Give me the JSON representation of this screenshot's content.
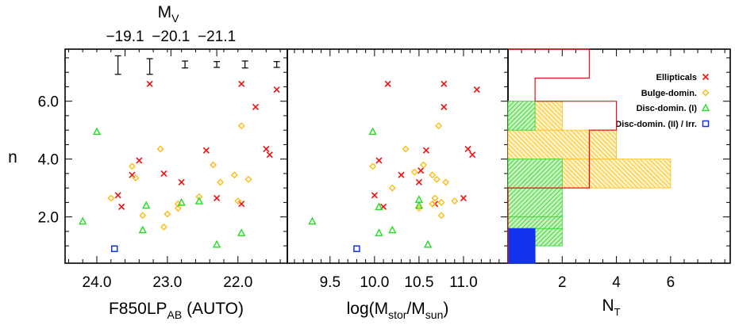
{
  "colors": {
    "ellipticals": "#ee1111",
    "bulge": "#ffbb11",
    "disc1": "#22dd22",
    "disc2": "#1133ee",
    "errorbar": "#000000"
  },
  "chart_data": {
    "type": "scatter",
    "yaxis": {
      "label": "n",
      "ticks": [
        "2.0",
        "4.0",
        "6.0"
      ],
      "tick_values": [
        2.0,
        4.0,
        6.0
      ],
      "ylim": [
        0.4,
        7.8
      ]
    },
    "panels": [
      {
        "name": "magnitude",
        "xlabel_main": "F850LP",
        "xlabel_sub": "AB",
        "xlabel_tail": " (AUTO)",
        "xlim": [
          24.45,
          21.3
        ],
        "xticks": [
          "24.0",
          "23.0",
          "22.0"
        ],
        "xtick_values": [
          24.0,
          23.0,
          22.0
        ],
        "top_axis": {
          "label_main": "M",
          "label_sub": "V",
          "ticks": [
            "−19.1",
            "−20.1",
            "−21.1"
          ],
          "tick_values": [
            23.6,
            22.95,
            22.3
          ]
        },
        "errorbars": [
          {
            "x": 23.7,
            "y": 7.25,
            "err": 0.32
          },
          {
            "x": 23.25,
            "y": 7.2,
            "err": 0.27
          },
          {
            "x": 22.75,
            "y": 7.27,
            "err": 0.12
          },
          {
            "x": 22.3,
            "y": 7.27,
            "err": 0.1
          },
          {
            "x": 21.9,
            "y": 7.27,
            "err": 0.12
          },
          {
            "x": 21.45,
            "y": 7.27,
            "err": 0.1
          }
        ],
        "series": [
          {
            "name": "Ellipticals",
            "marker": "x",
            "points": [
              [
                23.25,
                6.6
              ],
              [
                21.95,
                6.6
              ],
              [
                21.45,
                6.4
              ],
              [
                21.75,
                5.8
              ],
              [
                21.6,
                4.35
              ],
              [
                21.55,
                4.15
              ],
              [
                22.45,
                4.3
              ],
              [
                23.4,
                3.95
              ],
              [
                23.5,
                3.45
              ],
              [
                23.05,
                3.5
              ],
              [
                22.8,
                3.2
              ],
              [
                23.7,
                2.75
              ],
              [
                23.65,
                2.35
              ],
              [
                22.3,
                2.65
              ],
              [
                21.95,
                2.45
              ]
            ]
          },
          {
            "name": "Bulge-domin.",
            "marker": "diamond",
            "points": [
              [
                21.95,
                5.15
              ],
              [
                23.1,
                4.35
              ],
              [
                22.35,
                3.8
              ],
              [
                23.5,
                3.75
              ],
              [
                23.45,
                3.35
              ],
              [
                22.05,
                3.45
              ],
              [
                21.85,
                3.3
              ],
              [
                22.25,
                3.2
              ],
              [
                23.8,
                2.65
              ],
              [
                22.55,
                2.7
              ],
              [
                22.85,
                2.45
              ],
              [
                22.85,
                2.3
              ],
              [
                23.0,
                2.1
              ],
              [
                23.35,
                2.05
              ],
              [
                23.05,
                1.65
              ],
              [
                22.0,
                2.55
              ]
            ]
          },
          {
            "name": "Disc-domin. (I)",
            "marker": "triangle",
            "points": [
              [
                24.0,
                4.95
              ],
              [
                22.8,
                2.5
              ],
              [
                22.55,
                2.55
              ],
              [
                23.3,
                2.4
              ],
              [
                24.2,
                1.85
              ],
              [
                23.35,
                1.55
              ],
              [
                22.3,
                1.05
              ],
              [
                21.95,
                1.45
              ]
            ]
          },
          {
            "name": "Disc-domin. (II) / Irr.",
            "marker": "square",
            "points": [
              [
                23.75,
                0.9
              ]
            ]
          }
        ]
      },
      {
        "name": "mass",
        "xlabel_main": "log(M",
        "xlabel_sub1": "stor",
        "xlabel_mid": "/M",
        "xlabel_sub2": "sun",
        "xlabel_tail": ")",
        "xlim": [
          9.02,
          11.5
        ],
        "xticks": [
          "9.5",
          "10.0",
          "10.5",
          "11.0"
        ],
        "xtick_values": [
          9.5,
          10.0,
          10.5,
          11.0
        ],
        "series": [
          {
            "name": "Ellipticals",
            "marker": "x",
            "points": [
              [
                10.15,
                6.6
              ],
              [
                10.78,
                6.6
              ],
              [
                11.15,
                6.4
              ],
              [
                10.78,
                5.8
              ],
              [
                11.05,
                4.35
              ],
              [
                11.1,
                4.15
              ],
              [
                10.58,
                4.3
              ],
              [
                10.05,
                3.95
              ],
              [
                10.3,
                3.45
              ],
              [
                10.5,
                3.2
              ],
              [
                10.52,
                3.6
              ],
              [
                10.68,
                2.45
              ],
              [
                10.0,
                2.75
              ],
              [
                10.1,
                2.35
              ],
              [
                11.0,
                2.65
              ]
            ]
          },
          {
            "name": "Bulge-domin.",
            "marker": "diamond",
            "points": [
              [
                10.72,
                5.15
              ],
              [
                10.35,
                4.35
              ],
              [
                10.55,
                3.8
              ],
              [
                9.98,
                3.75
              ],
              [
                10.65,
                3.45
              ],
              [
                10.7,
                3.3
              ],
              [
                10.8,
                3.2
              ],
              [
                10.45,
                3.55
              ],
              [
                10.68,
                2.65
              ],
              [
                10.9,
                2.55
              ],
              [
                10.65,
                2.45
              ],
              [
                10.75,
                2.05
              ],
              [
                10.5,
                2.3
              ],
              [
                10.2,
                3.0
              ],
              [
                10.75,
                2.5
              ]
            ]
          },
          {
            "name": "Disc-domin. (I)",
            "marker": "triangle",
            "points": [
              [
                9.98,
                4.95
              ],
              [
                10.5,
                2.6
              ],
              [
                10.05,
                2.35
              ],
              [
                9.3,
                1.85
              ],
              [
                10.2,
                1.55
              ],
              [
                10.05,
                1.45
              ],
              [
                10.6,
                1.05
              ],
              [
                10.5,
                2.4
              ]
            ]
          },
          {
            "name": "Disc-domin. (II) / Irr.",
            "marker": "square",
            "points": [
              [
                9.8,
                0.9
              ]
            ]
          }
        ]
      },
      {
        "name": "histogram",
        "type": "bar",
        "xlabel_main": "N",
        "xlabel_sub": "T",
        "xlim": [
          0,
          8.2
        ],
        "xticks": [
          "2",
          "4",
          "6"
        ],
        "xtick_values": [
          2,
          4,
          6
        ],
        "bin_edges": [
          0.4,
          1.0,
          1.6,
          2.0,
          3.0,
          4.0,
          5.0,
          6.0,
          6.8,
          7.8
        ],
        "series": [
          {
            "name": "Ellipticals",
            "style": "outline",
            "counts": [
              0,
              0,
              0,
              0,
              3,
              3,
              4,
              1,
              3
            ]
          },
          {
            "name": "Bulge-domin.",
            "style": "hatch",
            "counts": [
              0,
              0,
              0,
              0,
              6,
              4,
              2,
              0,
              0
            ]
          },
          {
            "name": "Disc-domin. (I)",
            "style": "hatch",
            "counts": [
              0,
              2,
              2,
              2,
              2,
              0,
              1,
              0,
              0
            ]
          },
          {
            "name": "Disc-domin. (II) / Irr.",
            "style": "solid",
            "counts": [
              1,
              1,
              0,
              0,
              0,
              0,
              0,
              0,
              0
            ]
          }
        ]
      }
    ],
    "legend": {
      "placement": "top-right",
      "entries": [
        {
          "label": "Ellipticals",
          "marker": "x"
        },
        {
          "label": "Bulge-domin.",
          "marker": "diamond"
        },
        {
          "label": "Disc-domin. (I)",
          "marker": "triangle"
        },
        {
          "label": "Disc-domin. (II) / Irr.",
          "marker": "square"
        }
      ]
    }
  }
}
